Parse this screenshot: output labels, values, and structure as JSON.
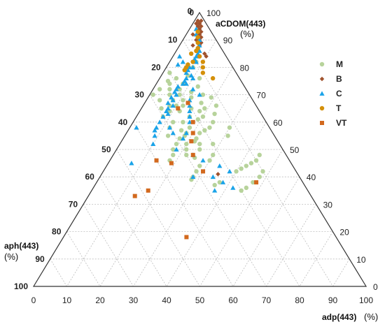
{
  "chart_data": {
    "type": "scatter",
    "subtype": "ternary",
    "axes": {
      "top": {
        "label": "aCDOM(443)",
        "unit": "(%)",
        "ticks": [
          "0",
          "10",
          "20",
          "30",
          "40",
          "50",
          "60",
          "70",
          "80",
          "90",
          "100"
        ]
      },
      "left": {
        "label": "aph(443)",
        "unit": "(%)",
        "ticks": [
          "0",
          "10",
          "20",
          "30",
          "40",
          "50",
          "60",
          "70",
          "80",
          "90",
          "100"
        ]
      },
      "bottom": {
        "label": "adp(443)",
        "unit": "(%)",
        "ticks": [
          "0",
          "10",
          "20",
          "30",
          "40",
          "50",
          "60",
          "70",
          "80",
          "90",
          "100"
        ]
      },
      "right": {
        "ticks": [
          "0",
          "10",
          "20",
          "30",
          "40",
          "50",
          "60",
          "70",
          "80",
          "90",
          "100"
        ]
      }
    },
    "grid": true,
    "legend_position": "right",
    "series": [
      {
        "name": "M",
        "marker": "circle",
        "color": "#b7d39b",
        "points": [
          [
            75,
            22
          ],
          [
            78,
            20
          ],
          [
            74,
            18
          ],
          [
            72,
            23
          ],
          [
            70,
            24
          ],
          [
            66,
            26
          ],
          [
            64,
            27
          ],
          [
            60,
            28
          ],
          [
            58,
            30
          ],
          [
            55,
            32
          ],
          [
            68,
            21
          ],
          [
            71,
            17
          ],
          [
            77,
            15
          ],
          [
            80,
            12
          ],
          [
            82,
            10
          ],
          [
            76,
            12
          ],
          [
            73,
            14
          ],
          [
            69,
            18
          ],
          [
            65,
            20
          ],
          [
            62,
            22
          ],
          [
            60,
            25
          ],
          [
            57,
            27
          ],
          [
            54,
            29
          ],
          [
            52,
            31
          ],
          [
            50,
            33
          ],
          [
            62,
            30
          ],
          [
            65,
            29
          ],
          [
            68,
            28
          ],
          [
            70,
            29
          ],
          [
            72,
            26
          ],
          [
            56,
            22
          ],
          [
            58,
            18
          ],
          [
            60,
            16
          ],
          [
            63,
            14
          ],
          [
            66,
            12
          ],
          [
            69,
            12
          ],
          [
            61,
            20
          ],
          [
            64,
            18
          ],
          [
            67,
            16
          ],
          [
            70,
            14
          ],
          [
            52,
            20
          ],
          [
            55,
            14
          ],
          [
            58,
            12
          ],
          [
            52,
            28
          ],
          [
            50,
            29
          ],
          [
            48,
            34
          ],
          [
            46,
            36
          ],
          [
            48,
            30
          ],
          [
            44,
            28
          ],
          [
            42,
            30
          ],
          [
            40,
            32
          ],
          [
            39,
            33
          ],
          [
            54,
            24
          ],
          [
            57,
            20
          ],
          [
            42,
            10
          ],
          [
            40,
            12
          ],
          [
            38,
            15
          ],
          [
            36,
            18
          ],
          [
            35,
            20
          ],
          [
            48,
            22
          ],
          [
            46,
            24
          ],
          [
            47,
            28
          ],
          [
            48,
            8
          ],
          [
            46,
            10
          ],
          [
            45,
            12
          ],
          [
            44,
            14
          ],
          [
            43,
            16
          ],
          [
            42,
            18
          ],
          [
            38,
            25
          ],
          [
            37,
            27
          ],
          [
            55,
            27
          ],
          [
            53,
            25
          ],
          [
            65,
            16
          ],
          [
            66,
            22
          ],
          [
            62,
            18
          ],
          [
            58,
            24
          ],
          [
            56,
            26
          ],
          [
            50,
            25
          ],
          [
            52,
            24
          ],
          [
            76,
            19
          ],
          [
            74,
            22
          ],
          [
            72,
            20
          ],
          [
            70,
            21
          ],
          [
            68,
            24
          ],
          [
            66,
            24
          ],
          [
            64,
            24
          ]
        ]
      },
      {
        "name": "B",
        "marker": "diamond",
        "color": "#a0522d",
        "points": [
          [
            97,
            2
          ],
          [
            96,
            2
          ],
          [
            95,
            3
          ],
          [
            94,
            3
          ],
          [
            93,
            4
          ],
          [
            92,
            4
          ],
          [
            91,
            5
          ],
          [
            90,
            6
          ],
          [
            89,
            6
          ],
          [
            88,
            6
          ],
          [
            97,
            1
          ],
          [
            96,
            3
          ],
          [
            95,
            2
          ],
          [
            93,
            3
          ],
          [
            91,
            4
          ],
          [
            89,
            5
          ],
          [
            87,
            7
          ],
          [
            85,
            6
          ],
          [
            84,
            6
          ],
          [
            86,
            8
          ],
          [
            92,
            6
          ],
          [
            90,
            5
          ],
          [
            88,
            8
          ],
          [
            78,
            10
          ],
          [
            41,
            24
          ]
        ]
      },
      {
        "name": "C",
        "marker": "triangle",
        "color": "#1aa3e8",
        "points": [
          [
            94,
            4
          ],
          [
            92,
            5
          ],
          [
            90,
            5
          ],
          [
            88,
            6
          ],
          [
            86,
            7
          ],
          [
            85,
            8
          ],
          [
            84,
            9
          ],
          [
            83,
            10
          ],
          [
            82,
            10
          ],
          [
            80,
            12
          ],
          [
            79,
            14
          ],
          [
            78,
            15
          ],
          [
            77,
            14
          ],
          [
            76,
            16
          ],
          [
            75,
            17
          ],
          [
            74,
            18
          ],
          [
            73,
            20
          ],
          [
            72,
            21
          ],
          [
            71,
            22
          ],
          [
            70,
            22
          ],
          [
            69,
            24
          ],
          [
            68,
            24
          ],
          [
            67,
            26
          ],
          [
            66,
            25
          ],
          [
            65,
            27
          ],
          [
            64,
            28
          ],
          [
            63,
            28
          ],
          [
            62,
            30
          ],
          [
            60,
            32
          ],
          [
            58,
            34
          ],
          [
            57,
            35
          ],
          [
            56,
            26
          ],
          [
            55,
            36
          ],
          [
            52,
            38
          ],
          [
            45,
            48
          ],
          [
            84,
            14
          ],
          [
            82,
            14
          ],
          [
            81,
            16
          ],
          [
            80,
            13
          ],
          [
            76,
            14
          ],
          [
            74,
            17
          ],
          [
            72,
            16
          ],
          [
            70,
            15
          ],
          [
            68,
            19
          ],
          [
            66,
            20
          ],
          [
            64,
            21
          ],
          [
            62,
            22
          ],
          [
            60,
            23
          ],
          [
            56,
            30
          ],
          [
            54,
            28
          ],
          [
            50,
            32
          ],
          [
            48,
            28
          ],
          [
            46,
            26
          ],
          [
            44,
            22
          ],
          [
            42,
            20
          ],
          [
            38,
            24
          ],
          [
            36,
            22
          ],
          [
            35,
            28
          ],
          [
            40,
            26
          ],
          [
            58,
            30
          ],
          [
            40,
            32
          ],
          [
            58,
            40
          ]
        ]
      },
      {
        "name": "T",
        "marker": "circle",
        "color": "#d4900a",
        "points": [
          [
            93,
            4
          ],
          [
            91,
            5
          ],
          [
            89,
            6
          ],
          [
            87,
            7
          ],
          [
            86,
            8
          ],
          [
            84,
            8
          ],
          [
            82,
            8
          ],
          [
            80,
            9
          ],
          [
            78,
            10
          ],
          [
            76,
            8
          ],
          [
            85,
            10
          ],
          [
            82,
            11
          ],
          [
            80,
            14
          ],
          [
            79,
            15
          ],
          [
            81,
            13
          ]
        ]
      },
      {
        "name": "VT",
        "marker": "square",
        "color": "#d2691e",
        "points": [
          [
            67,
            20
          ],
          [
            65,
            24
          ],
          [
            60,
            22
          ],
          [
            56,
            24
          ],
          [
            53,
            26
          ],
          [
            48,
            28
          ],
          [
            45,
            36
          ],
          [
            42,
            28
          ],
          [
            38,
            14
          ],
          [
            46,
            40
          ],
          [
            35,
            48
          ],
          [
            33,
            53
          ],
          [
            18,
            45
          ]
        ]
      }
    ]
  }
}
